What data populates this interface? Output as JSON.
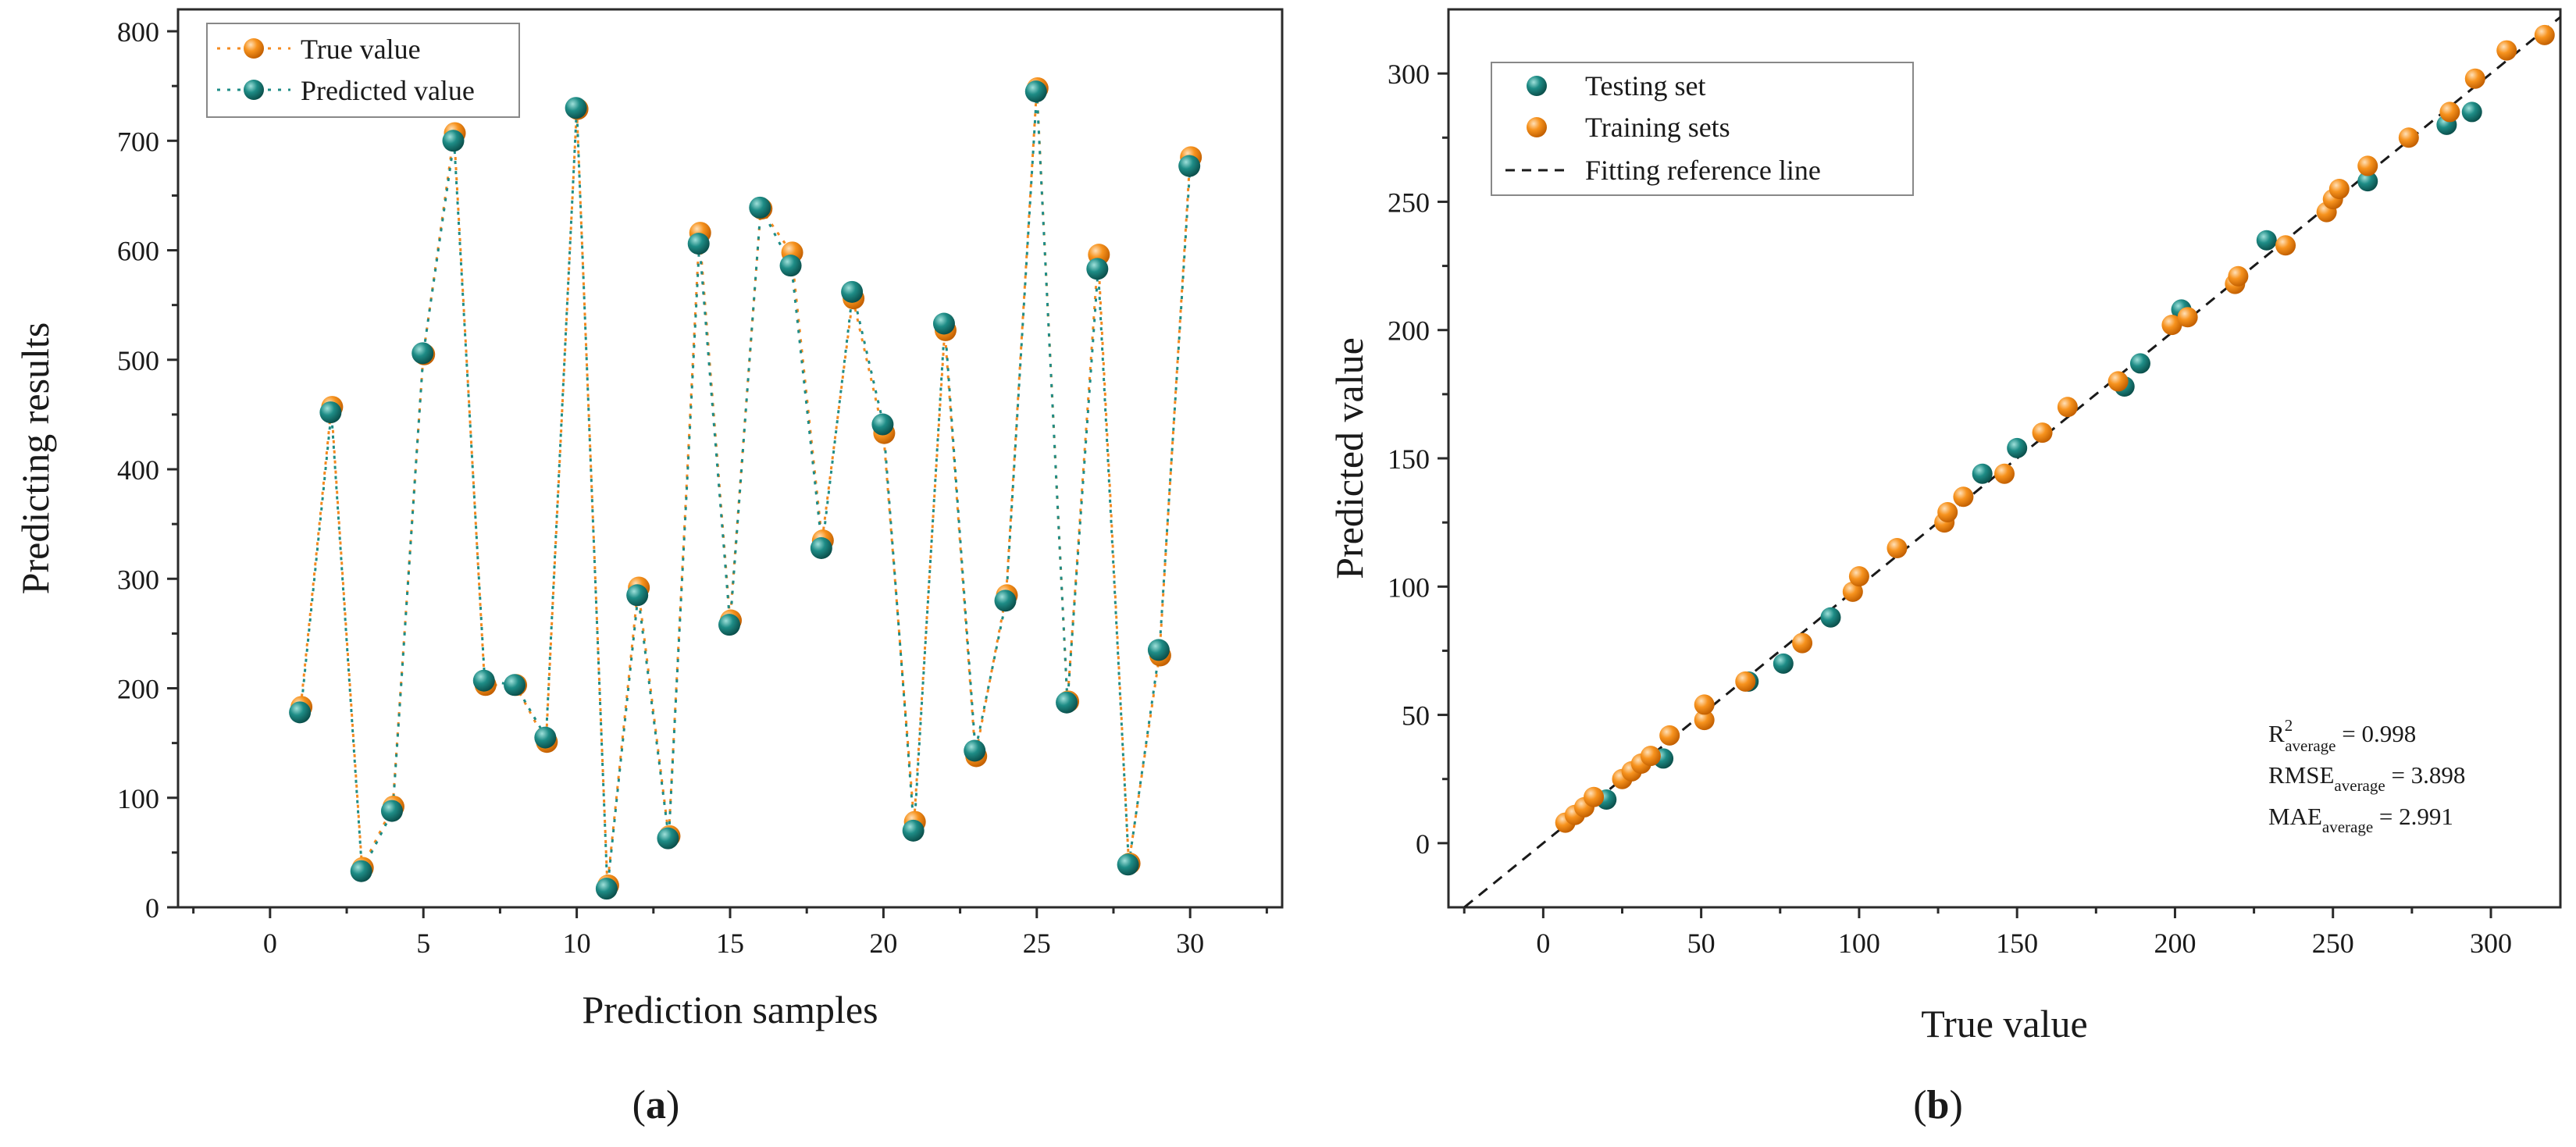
{
  "chart_data": [
    {
      "type": "line",
      "panel_label": "a",
      "xlabel": "Prediction samples",
      "ylabel": "Predicting results",
      "xlim": [
        -3,
        33
      ],
      "ylim": [
        0,
        820
      ],
      "xticks": [
        0,
        5,
        10,
        15,
        20,
        25,
        30
      ],
      "yticks": [
        0,
        100,
        200,
        300,
        400,
        500,
        600,
        700,
        800
      ],
      "grid": false,
      "legend_position": "top-left",
      "x": [
        1,
        2,
        3,
        4,
        5,
        6,
        7,
        8,
        9,
        10,
        11,
        12,
        13,
        14,
        15,
        16,
        17,
        18,
        19,
        20,
        21,
        22,
        23,
        24,
        25,
        26,
        27,
        28,
        29,
        30
      ],
      "series": [
        {
          "name": "True value",
          "color": "#F58A1F",
          "values": [
            183,
            457,
            36,
            92,
            505,
            707,
            203,
            203,
            151,
            729,
            20,
            292,
            65,
            616,
            262,
            638,
            598,
            335,
            556,
            433,
            78,
            527,
            138,
            285,
            748,
            188,
            596,
            40,
            230,
            685
          ]
        },
        {
          "name": "Predicted value",
          "color": "#1E8C86",
          "values": [
            178,
            452,
            33,
            88,
            506,
            700,
            207,
            203,
            155,
            730,
            17,
            285,
            63,
            606,
            258,
            639,
            586,
            328,
            562,
            441,
            70,
            533,
            143,
            280,
            745,
            187,
            583,
            39,
            235,
            677
          ]
        }
      ]
    },
    {
      "type": "scatter",
      "panel_label": "b",
      "xlabel": "True value",
      "ylabel": "Predicted value",
      "xlim": [
        -30,
        322
      ],
      "ylim": [
        -25,
        325
      ],
      "xticks": [
        0,
        50,
        100,
        150,
        200,
        250,
        300
      ],
      "yticks": [
        0,
        50,
        100,
        150,
        200,
        250,
        300
      ],
      "grid": false,
      "legend_position": "top-left",
      "reference_line": {
        "name": "Fitting reference line",
        "style": "dashed",
        "color": "#1a1a1a"
      },
      "series": [
        {
          "name": "Testing set",
          "color": "#1E8C86",
          "points": [
            [
              20,
              17
            ],
            [
              38,
              33
            ],
            [
              65,
              63
            ],
            [
              76,
              70
            ],
            [
              91,
              88
            ],
            [
              139,
              144
            ],
            [
              150,
              154
            ],
            [
              184,
              178
            ],
            [
              189,
              187
            ],
            [
              202,
              208
            ],
            [
              229,
              235
            ],
            [
              261,
              258
            ],
            [
              286,
              280
            ],
            [
              294,
              285
            ]
          ]
        },
        {
          "name": "Training sets",
          "color": "#F58A1F",
          "points": [
            [
              7,
              8
            ],
            [
              10,
              11
            ],
            [
              13,
              14
            ],
            [
              16,
              18
            ],
            [
              25,
              25
            ],
            [
              28,
              28
            ],
            [
              31,
              31
            ],
            [
              34,
              34
            ],
            [
              40,
              42
            ],
            [
              51,
              48
            ],
            [
              51,
              54
            ],
            [
              64,
              63
            ],
            [
              82,
              78
            ],
            [
              98,
              98
            ],
            [
              100,
              104
            ],
            [
              112,
              115
            ],
            [
              127,
              125
            ],
            [
              128,
              129
            ],
            [
              133,
              135
            ],
            [
              146,
              144
            ],
            [
              158,
              160
            ],
            [
              166,
              170
            ],
            [
              182,
              180
            ],
            [
              199,
              202
            ],
            [
              204,
              205
            ],
            [
              219,
              218
            ],
            [
              220,
              221
            ],
            [
              235,
              233
            ],
            [
              248,
              246
            ],
            [
              250,
              251
            ],
            [
              252,
              255
            ],
            [
              261,
              264
            ],
            [
              274,
              275
            ],
            [
              287,
              285
            ],
            [
              295,
              298
            ],
            [
              305,
              309
            ],
            [
              317,
              315
            ]
          ]
        }
      ],
      "annotations": [
        {
          "main": "R",
          "sup": "2",
          "sub": "average",
          "value": " = 0.998"
        },
        {
          "main": "RMSE",
          "sub": "average",
          "value": " = 3.898"
        },
        {
          "main": "MAE",
          "sub": "average",
          "value": " = 2.991"
        }
      ]
    }
  ]
}
